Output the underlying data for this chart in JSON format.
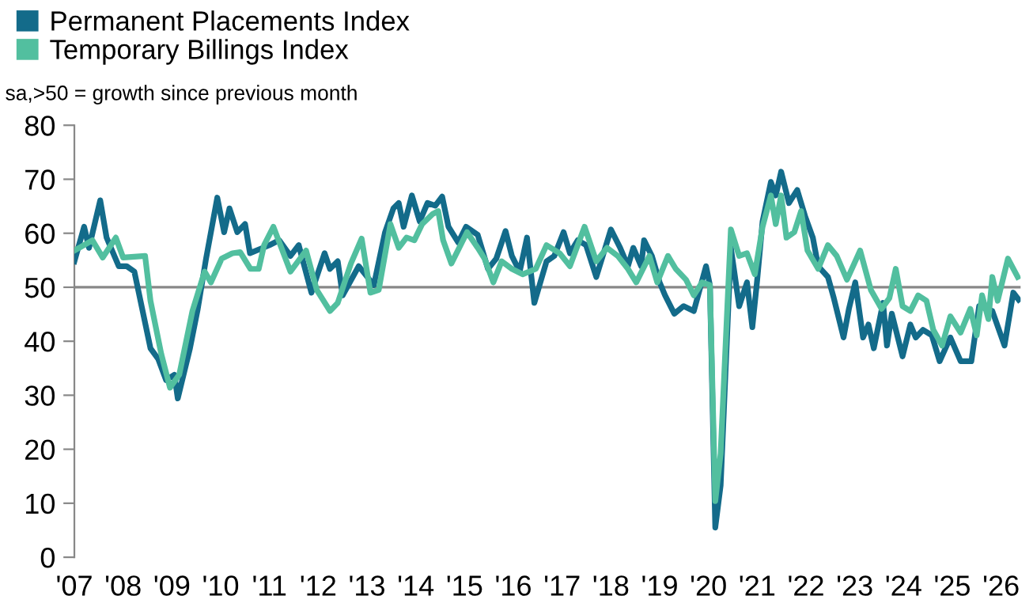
{
  "chart_data": {
    "type": "line",
    "annotations": [
      "sa,>50 = growth since previous month"
    ],
    "xlim": [
      2007,
      2026.4
    ],
    "ylim": [
      0,
      80
    ],
    "xticks": [
      {
        "value": 2007,
        "label": "'07"
      },
      {
        "value": 2008,
        "label": "'08"
      },
      {
        "value": 2009,
        "label": "'09"
      },
      {
        "value": 2010,
        "label": "'10"
      },
      {
        "value": 2011,
        "label": "'11"
      },
      {
        "value": 2012,
        "label": "'12"
      },
      {
        "value": 2013,
        "label": "'13"
      },
      {
        "value": 2014,
        "label": "'14"
      },
      {
        "value": 2015,
        "label": "'15"
      },
      {
        "value": 2016,
        "label": "'16"
      },
      {
        "value": 2017,
        "label": "'17"
      },
      {
        "value": 2018,
        "label": "'18"
      },
      {
        "value": 2019,
        "label": "'19"
      },
      {
        "value": 2020,
        "label": "'20"
      },
      {
        "value": 2021,
        "label": "'21"
      },
      {
        "value": 2022,
        "label": "'22"
      },
      {
        "value": 2023,
        "label": "'23"
      },
      {
        "value": 2024,
        "label": "'24"
      },
      {
        "value": 2025,
        "label": "'25"
      },
      {
        "value": 2026,
        "label": "'26"
      }
    ],
    "yticks": [
      0,
      10,
      20,
      30,
      40,
      50,
      60,
      70,
      80
    ],
    "ref_lines": [
      {
        "axis": "y",
        "value": 50,
        "color": "#888888"
      }
    ],
    "legend": "top left",
    "grid": false,
    "marker": "none",
    "line_style": "solid",
    "series": [
      {
        "name": "Permanent Placements Index",
        "color": "#136b8a",
        "x": [
          2007.0,
          2007.2,
          2007.3,
          2007.53,
          2007.66,
          2007.91,
          2008.07,
          2008.23,
          2008.56,
          2008.72,
          2008.88,
          2009.05,
          2009.12,
          2009.37,
          2009.53,
          2009.7,
          2009.93,
          2010.07,
          2010.18,
          2010.34,
          2010.5,
          2010.6,
          2011.0,
          2011.2,
          2011.43,
          2011.6,
          2011.86,
          2012.13,
          2012.24,
          2012.4,
          2012.5,
          2012.83,
          2013.14,
          2013.37,
          2013.54,
          2013.65,
          2013.75,
          2013.92,
          2014.08,
          2014.24,
          2014.4,
          2014.54,
          2014.67,
          2014.87,
          2015.03,
          2015.27,
          2015.48,
          2015.65,
          2015.84,
          2015.97,
          2016.13,
          2016.28,
          2016.43,
          2016.68,
          2016.84,
          2017.03,
          2017.16,
          2017.32,
          2017.49,
          2017.7,
          2018.0,
          2018.19,
          2018.35,
          2018.46,
          2018.62,
          2018.68,
          2018.84,
          2019.0,
          2019.11,
          2019.3,
          2019.49,
          2019.7,
          2019.95,
          2020.03,
          2020.14,
          2020.25,
          2020.46,
          2020.63,
          2020.79,
          2020.9,
          2021.0,
          2021.11,
          2021.28,
          2021.38,
          2021.49,
          2021.65,
          2021.82,
          2021.98,
          2022.14,
          2022.25,
          2022.45,
          2022.57,
          2022.77,
          2022.88,
          2023.01,
          2023.17,
          2023.28,
          2023.39,
          2023.58,
          2023.66,
          2023.76,
          2023.98,
          2024.14,
          2024.25,
          2024.4,
          2024.58,
          2024.74,
          2024.96,
          2025.17,
          2025.39,
          2025.55,
          2025.82,
          2026.07,
          2026.25,
          2026.36
        ],
        "values": [
          54.8,
          61.2,
          57.3,
          66.1,
          59.2,
          53.9,
          53.9,
          52.9,
          38.7,
          36.7,
          32.8,
          33.8,
          29.4,
          38.7,
          46.0,
          55.3,
          66.6,
          60.2,
          64.6,
          60.2,
          61.7,
          56.3,
          57.8,
          58.7,
          55.8,
          57.8,
          49.0,
          56.3,
          53.4,
          54.8,
          48.5,
          53.9,
          50.4,
          60.2,
          64.6,
          65.6,
          61.2,
          67.0,
          62.2,
          65.6,
          65.1,
          66.8,
          61.2,
          58.3,
          61.2,
          59.7,
          53.4,
          55.3,
          60.4,
          55.8,
          52.9,
          59.2,
          47.1,
          54.8,
          55.8,
          60.2,
          56.3,
          58.7,
          57.8,
          51.9,
          60.7,
          57.3,
          53.9,
          57.3,
          53.9,
          58.7,
          55.8,
          50.9,
          48.5,
          45.1,
          46.5,
          45.6,
          53.9,
          50.4,
          5.5,
          13.3,
          57.3,
          46.5,
          50.9,
          42.6,
          51.4,
          62.2,
          69.5,
          67.0,
          71.4,
          65.6,
          68.0,
          63.2,
          59.2,
          53.9,
          51.9,
          48.0,
          40.7,
          46.0,
          50.9,
          40.7,
          43.1,
          38.7,
          47.1,
          39.2,
          45.1,
          37.2,
          43.1,
          40.7,
          42.1,
          41.1,
          36.3,
          40.7,
          36.3,
          36.3,
          46.5,
          45.6,
          39.2,
          49.0,
          47.7
        ]
      },
      {
        "name": "Temporary Billings Index",
        "color": "#52bf9f",
        "x": [
          2007.0,
          2007.37,
          2007.58,
          2007.85,
          2008.0,
          2008.45,
          2008.56,
          2008.78,
          2008.96,
          2009.15,
          2009.42,
          2009.67,
          2009.8,
          2010.02,
          2010.24,
          2010.4,
          2010.61,
          2010.78,
          2010.89,
          2011.08,
          2011.43,
          2011.75,
          2011.97,
          2012.24,
          2012.4,
          2012.67,
          2012.89,
          2013.07,
          2013.24,
          2013.48,
          2013.65,
          2013.81,
          2013.97,
          2014.13,
          2014.35,
          2014.46,
          2014.56,
          2014.73,
          2014.89,
          2015.05,
          2015.27,
          2015.41,
          2015.59,
          2015.76,
          2015.97,
          2016.19,
          2016.46,
          2016.68,
          2016.95,
          2017.16,
          2017.46,
          2017.7,
          2017.92,
          2018.14,
          2018.35,
          2018.52,
          2018.79,
          2018.95,
          2019.17,
          2019.33,
          2019.54,
          2019.7,
          2019.87,
          2020.03,
          2020.14,
          2020.25,
          2020.46,
          2020.63,
          2020.79,
          2020.95,
          2021.11,
          2021.28,
          2021.38,
          2021.49,
          2021.6,
          2021.76,
          2021.9,
          2022.03,
          2022.25,
          2022.45,
          2022.63,
          2022.84,
          2023.11,
          2023.33,
          2023.55,
          2023.71,
          2023.84,
          2023.98,
          2024.14,
          2024.3,
          2024.47,
          2024.61,
          2024.79,
          2024.96,
          2025.17,
          2025.37,
          2025.5,
          2025.61,
          2025.74,
          2025.82,
          2025.93,
          2026.14,
          2026.34
        ],
        "values": [
          56.8,
          58.7,
          55.5,
          59.2,
          55.5,
          55.8,
          47.5,
          37.7,
          31.4,
          33.8,
          45.6,
          52.9,
          50.9,
          55.3,
          56.3,
          56.5,
          53.4,
          53.4,
          57.8,
          61.2,
          52.9,
          56.8,
          49.5,
          45.6,
          47.1,
          54.4,
          59.0,
          49.0,
          49.5,
          61.7,
          57.3,
          59.2,
          58.7,
          61.7,
          63.6,
          64.1,
          58.7,
          54.4,
          57.3,
          60.2,
          57.3,
          55.3,
          50.9,
          54.8,
          53.4,
          52.4,
          53.4,
          57.8,
          56.3,
          53.9,
          61.2,
          54.8,
          57.3,
          55.8,
          53.4,
          50.9,
          55.8,
          50.9,
          55.8,
          53.4,
          51.4,
          48.5,
          50.9,
          50.4,
          10.4,
          19.2,
          60.7,
          55.8,
          56.3,
          52.4,
          61.2,
          67.0,
          61.7,
          67.0,
          59.2,
          60.2,
          64.1,
          56.8,
          53.4,
          57.8,
          55.8,
          51.4,
          56.8,
          49.5,
          46.0,
          48.0,
          53.4,
          46.5,
          45.6,
          48.5,
          47.5,
          42.1,
          39.2,
          44.6,
          41.6,
          46.0,
          41.1,
          48.5,
          44.1,
          51.9,
          47.5,
          55.3,
          51.9
        ]
      }
    ]
  }
}
